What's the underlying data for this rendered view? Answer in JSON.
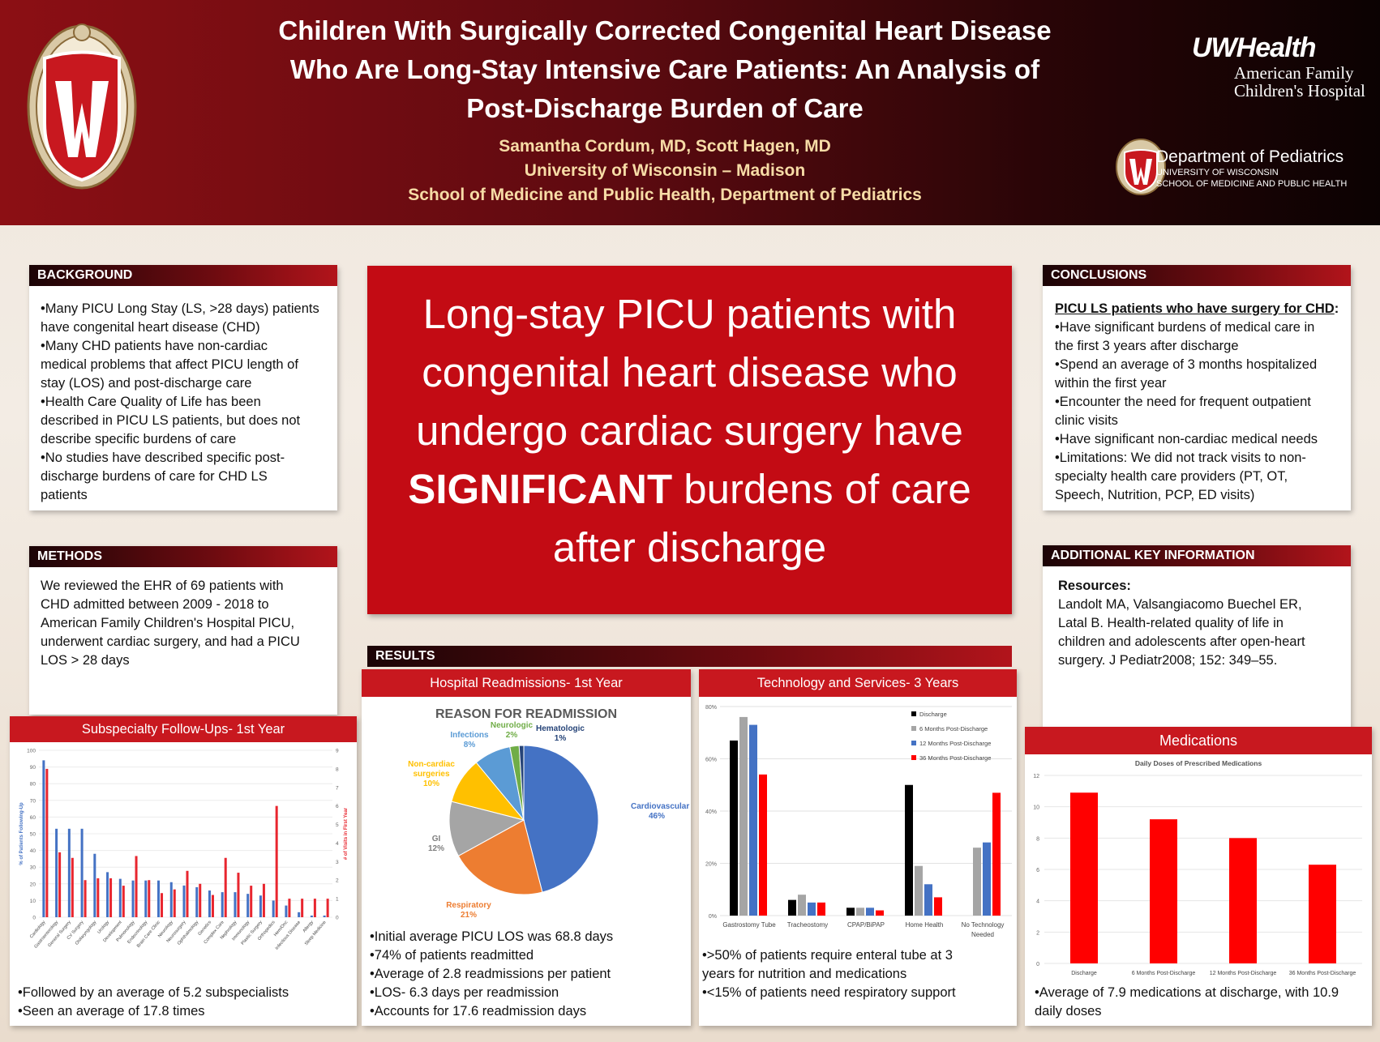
{
  "header": {
    "title_lines": [
      "Children With Surgically Corrected Congenital Heart Disease",
      "Who Are Long-Stay Intensive Care Patients: An Analysis of",
      "Post-Discharge Burden of Care"
    ],
    "authors": "Samantha Cordum, MD, Scott Hagen, MD",
    "affiliation1": "University of Wisconsin – Madison",
    "affiliation2": "School of Medicine and Public Health, Department of Pediatrics",
    "uw_health_brand": "UWHealth",
    "uw_health_sub1": "American Family",
    "uw_health_sub2": "Children's Hospital",
    "dept_name": "Department of Pediatrics",
    "dept_sub1": "UNIVERSITY OF WISCONSIN",
    "dept_sub2": "SCHOOL OF MEDICINE AND PUBLIC HEALTH"
  },
  "background": {
    "heading": "BACKGROUND",
    "lines": [
      "•Many PICU Long Stay (LS, >28 days) patients",
      "have congenital heart disease (CHD)",
      "•Many CHD patients have non-cardiac",
      "medical problems that affect PICU length of",
      "stay (LOS) and post-discharge care",
      "•Health Care Quality of Life has been",
      "described in PICU LS patients, but does not",
      "describe specific burdens of care",
      "•No studies have described specific post-",
      "discharge burdens of care for CHD LS",
      "patients"
    ]
  },
  "methods": {
    "heading": "METHODS",
    "lines": [
      "We reviewed the EHR of 69 patients with",
      "CHD admitted between 2009 - 2018 to",
      "American Family Children's Hospital PICU,",
      "underwent cardiac surgery, and had a PICU",
      "LOS > 28 days"
    ]
  },
  "key_message": {
    "line1": "Long-stay PICU patients with",
    "line2": "congenital heart disease who",
    "line3": "undergo cardiac surgery have",
    "emph": "SIGNIFICANT",
    "line4_rest": " burdens of care",
    "line5": "after discharge"
  },
  "conclusions": {
    "heading": "CONCLUSIONS",
    "subhead": "PICU LS patients who have surgery for CHD",
    "subhead_colon": ":",
    "lines": [
      "•Have significant burdens of medical care in",
      "the first 3 years after discharge",
      "•Spend an average of 3 months hospitalized",
      "within the first year",
      "•Encounter the need for frequent outpatient",
      "clinic visits",
      "•Have significant non-cardiac medical needs",
      "•Limitations: We did not track visits to non-",
      "specialty health care providers (PT, OT,",
      "Speech, Nutrition, PCP, ED visits)"
    ]
  },
  "additional": {
    "heading": "ADDITIONAL KEY INFORMATION",
    "resources_label": "Resources:",
    "lines": [
      "Landolt MA, Valsangiacomo Buechel ER,",
      "Latal B. Health-related quality of life in",
      "children and adolescents after open-heart",
      "surgery. J Pediatr2008; 152: 349–55."
    ]
  },
  "results": {
    "heading": "RESULTS",
    "readmissions": {
      "heading": "Hospital Readmissions- 1st Year",
      "bullets": [
        "•Initial average PICU LOS was 68.8 days",
        "•74% of patients readmitted",
        "•Average of 2.8 readmissions per patient",
        "•LOS- 6.3 days per readmission",
        "•Accounts for 17.6 readmission days"
      ]
    },
    "technology": {
      "heading": "Technology and Services- 3 Years",
      "bullets": [
        "•>50% of patients require enteral tube at 3",
        "years for nutrition and medications",
        "•<15% of patients need respiratory support"
      ]
    },
    "subspecialty": {
      "heading": "Subspecialty Follow-Ups- 1st Year",
      "bullets": [
        "•Followed by an average of 5.2 subspecialists",
        "•Seen an average of 17.8 times"
      ]
    },
    "medications": {
      "heading": "Medications",
      "bullets": [
        "•Average of 7.9 medications at discharge, with 10.9",
        "daily doses"
      ]
    }
  },
  "colors": {
    "brand_red": "#c8181f",
    "dark_red": "#5d0a10",
    "pie_cardio": "#4472c4",
    "pie_resp": "#ed7d31",
    "pie_gi": "#a5a5a5",
    "pie_noncardiac": "#ffc000",
    "pie_infections": "#5b9bd5",
    "pie_neuro": "#70ad47"
  },
  "chart_data": [
    {
      "type": "pie",
      "title": "REASON FOR READMISSION",
      "slices": [
        {
          "label": "Cardiovascular",
          "value": 46,
          "pct_label": "46%",
          "color": "#4472c4"
        },
        {
          "label": "Respiratory",
          "value": 21,
          "pct_label": "21%",
          "color": "#ed7d31"
        },
        {
          "label": "GI",
          "value": 12,
          "pct_label": "12%",
          "color": "#a5a5a5"
        },
        {
          "label": "Non-cardiac surgeries",
          "value": 10,
          "pct_label": "10%",
          "color": "#ffc000"
        },
        {
          "label": "Infections",
          "value": 8,
          "pct_label": "8%",
          "color": "#5b9bd5"
        },
        {
          "label": "Neurologic",
          "value": 2,
          "pct_label": "2%",
          "color": "#70ad47"
        },
        {
          "label": "Hematologic",
          "value": 1,
          "pct_label": "1%",
          "color": "#264478"
        }
      ]
    },
    {
      "type": "bar",
      "title": "",
      "categories": [
        "Gastrostomy Tube",
        "Tracheostomy",
        "CPAP/BiPAP",
        "Home Health",
        "No Technology Needed"
      ],
      "series": [
        {
          "name": "Discharge",
          "color": "#000000",
          "values": [
            67,
            6,
            3,
            50,
            0
          ]
        },
        {
          "name": "6 Months Post-Discharge",
          "color": "#a5a5a5",
          "values": [
            76,
            8,
            3,
            19,
            26
          ]
        },
        {
          "name": "12 Months Post-Discharge",
          "color": "#4472c4",
          "values": [
            73,
            5,
            3,
            12,
            28
          ]
        },
        {
          "name": "36 Months Post-Discharge",
          "color": "#ff0000",
          "values": [
            54,
            5,
            2,
            7,
            47
          ]
        }
      ],
      "yticks": [
        "0%",
        "20%",
        "40%",
        "60%",
        "80%"
      ],
      "ylim": [
        0,
        80
      ],
      "legend": "top-right"
    },
    {
      "type": "bar",
      "title": "",
      "xlabel": "",
      "ylabel": "% of Patients Following-Up",
      "ylabel_right": "# of Visits in First Year",
      "categories": [
        "Cardiology",
        "Gastroenterology",
        "General Surgery",
        "CV Surgery",
        "Otolaryngology",
        "Urology",
        "Development",
        "Pulmonology",
        "Endocrinology",
        "Brain Care Clinic",
        "Neurology",
        "Neurosurgery",
        "Ophthalmology",
        "Genetics",
        "Complex Care",
        "Nephrology",
        "Immunology",
        "Plastic Surgery",
        "Orthopedics",
        "Hem/Onc",
        "Infectious Disease",
        "Allergy",
        "Sleep Medicine"
      ],
      "series": [
        {
          "name": "% of Patients Following-Up",
          "color": "#4472c4",
          "axis": "left",
          "values": [
            94,
            53,
            53,
            53,
            38,
            27,
            23,
            22,
            22,
            22,
            21,
            19,
            18,
            16,
            15,
            15,
            14,
            13,
            10,
            7,
            3,
            1,
            1
          ]
        },
        {
          "name": "# of Visits in First Year",
          "color": "#e8262f",
          "axis": "right",
          "values": [
            8,
            3.5,
            3.2,
            2,
            2.1,
            2.1,
            1.7,
            3.3,
            2,
            1.3,
            1.5,
            2.5,
            1.8,
            1.2,
            3.2,
            2.4,
            1.7,
            1.8,
            6,
            1,
            1,
            1,
            1
          ]
        }
      ],
      "yticks": [
        "0",
        "10",
        "20",
        "30",
        "40",
        "50",
        "60",
        "70",
        "80",
        "90",
        "100"
      ],
      "yticks_right": [
        "0",
        "1",
        "2",
        "3",
        "4",
        "5",
        "6",
        "7",
        "8",
        "9"
      ],
      "ylim": [
        0,
        100
      ],
      "ylim_right": [
        0,
        9
      ]
    },
    {
      "type": "bar",
      "title": "Daily Doses of Prescribed Medications",
      "categories": [
        "Discharge",
        "6 Months Post-Discharge",
        "12 Months Post-Discharge",
        "36 Months Post-Discharge"
      ],
      "values": [
        10.9,
        9.2,
        8.0,
        6.3
      ],
      "color": "#ff0000",
      "yticks": [
        "0",
        "2",
        "4",
        "6",
        "8",
        "10",
        "12"
      ],
      "ylim": [
        0,
        12
      ]
    }
  ]
}
